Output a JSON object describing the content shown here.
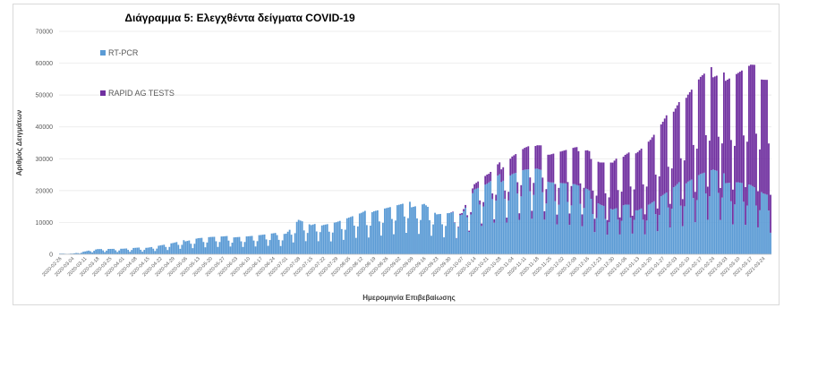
{
  "chart_data": {
    "type": "bar",
    "stacked": true,
    "title": "Διάγραμμα 5: Ελεγχθέντα δείγματα COVID-19",
    "xlabel": "Ημερομηνία Επιβεβαίωσης",
    "ylabel": "Αριθμός Δειγμάτων",
    "ylim": [
      0,
      70000
    ],
    "yticks": [
      0,
      10000,
      20000,
      30000,
      40000,
      50000,
      60000,
      70000
    ],
    "grid": true,
    "legend_position": "top-left inside plot",
    "x_tick_labels": [
      "2020-02-26",
      "2020-03-04",
      "2020-03-11",
      "2020-03-18",
      "2020-03-25",
      "2020-04-01",
      "2020-04-08",
      "2020-04-15",
      "2020-04-22",
      "2020-04-29",
      "2020-05-06",
      "2020-05-13",
      "2020-05-20",
      "2020-05-27",
      "2020-06-03",
      "2020-06-10",
      "2020-06-17",
      "2020-06-24",
      "2020-07-01",
      "2020-07-08",
      "2020-07-15",
      "2020-07-22",
      "2020-07-29",
      "2020-08-05",
      "2020-08-12",
      "2020-08-19",
      "2020-08-26",
      "2020-09-02",
      "2020-09-09",
      "2020-09-16",
      "2020-09-23",
      "2020-09-30",
      "2020-10-07",
      "2020-10-14",
      "2020-10-21",
      "2020-10-28",
      "2020-11-04",
      "2020-11-11",
      "2020-11-18",
      "2020-11-25",
      "2020-12-02",
      "2020-12-09",
      "2020-12-16",
      "2020-12-23",
      "2020-12-30",
      "2021-01-06",
      "2021-01-13",
      "2021-01-20",
      "2021-01-27",
      "2021-02-03",
      "2021-02-10",
      "2021-02-17",
      "2021-02-24",
      "2021-03-03",
      "2021-03-10",
      "2021-03-17",
      "2021-03-24"
    ],
    "weekly_points": [
      "2020-02-26",
      "2020-03-04",
      "2020-03-11",
      "2020-03-18",
      "2020-03-25",
      "2020-04-01",
      "2020-04-08",
      "2020-04-15",
      "2020-04-22",
      "2020-04-29",
      "2020-05-06",
      "2020-05-13",
      "2020-05-20",
      "2020-05-27",
      "2020-06-03",
      "2020-06-10",
      "2020-06-17",
      "2020-06-24",
      "2020-07-01",
      "2020-07-08",
      "2020-07-15",
      "2020-07-22",
      "2020-07-29",
      "2020-08-05",
      "2020-08-12",
      "2020-08-19",
      "2020-08-26",
      "2020-09-02",
      "2020-09-09",
      "2020-09-16",
      "2020-09-23",
      "2020-09-30",
      "2020-10-07",
      "2020-10-14",
      "2020-10-21",
      "2020-10-28",
      "2020-11-04",
      "2020-11-11",
      "2020-11-18",
      "2020-11-25",
      "2020-12-02",
      "2020-12-09",
      "2020-12-16",
      "2020-12-23",
      "2020-12-30",
      "2021-01-06",
      "2021-01-13",
      "2021-01-20",
      "2021-01-27",
      "2021-02-03",
      "2021-02-10",
      "2021-02-17",
      "2021-02-24",
      "2021-03-03",
      "2021-03-10",
      "2021-03-17",
      "2021-03-24",
      "2021-03-28"
    ],
    "series": [
      {
        "name": "RT-PCR",
        "color": "#5b9bd5",
        "weekly_level": [
          200,
          200,
          800,
          1600,
          1600,
          1600,
          1800,
          2000,
          2600,
          3200,
          4000,
          4800,
          5000,
          5000,
          5200,
          5300,
          5500,
          5800,
          6200,
          10000,
          8200,
          9000,
          9500,
          10500,
          11500,
          13000,
          13500,
          14000,
          14500,
          15000,
          11500,
          11500,
          12000,
          19000,
          20000,
          22000,
          24000,
          24500,
          24000,
          22000,
          21000,
          20000,
          18000,
          15000,
          13000,
          14000,
          13500,
          15000,
          17000,
          19000,
          22000,
          23500,
          24000,
          22000,
          21500,
          20000,
          17000,
          16000
        ]
      },
      {
        "name": "RAPID AG TESTS",
        "color": "#7030a0",
        "weekly_level": [
          0,
          0,
          0,
          0,
          0,
          0,
          0,
          0,
          0,
          0,
          0,
          0,
          0,
          0,
          0,
          0,
          0,
          0,
          0,
          0,
          0,
          0,
          0,
          0,
          0,
          0,
          0,
          0,
          0,
          0,
          0,
          0,
          500,
          1500,
          2500,
          3500,
          5000,
          6000,
          7000,
          8000,
          9000,
          10000,
          11500,
          12000,
          13000,
          15000,
          17000,
          18000,
          20000,
          23000,
          25000,
          27000,
          28000,
          30000,
          31000,
          33000,
          34000,
          34000
        ]
      }
    ]
  }
}
